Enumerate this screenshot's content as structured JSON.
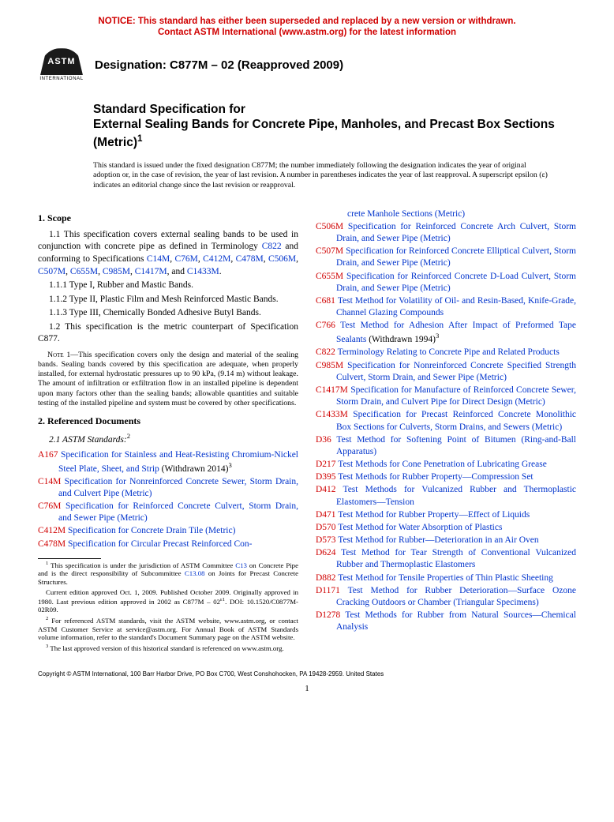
{
  "notice": {
    "line1": "NOTICE: This standard has either been superseded and replaced by a new version or withdrawn.",
    "line2": "Contact ASTM International (www.astm.org) for the latest information"
  },
  "logo": {
    "text": "ASTM",
    "sub": "INTERNATIONAL"
  },
  "designation": "Designation: C877M – 02 (Reapproved 2009)",
  "title": {
    "kicker": "Standard Specification for",
    "main": "External Sealing Bands for Concrete Pipe, Manholes, and Precast Box Sections (Metric)",
    "sup": "1"
  },
  "issuance": "This standard is issued under the fixed designation C877M; the number immediately following the designation indicates the year of original adoption or, in the case of revision, the year of last revision. A number in parentheses indicates the year of last reapproval. A superscript epsilon (ε) indicates an editorial change since the last revision or reapproval.",
  "sec1": {
    "heading": "1. Scope",
    "p11a": "1.1 This specification covers external sealing bands to be used in conjunction with concrete pipe as defined in Terminology ",
    "p11b": " and conforming to Specifications ",
    "list": [
      "C14M",
      "C76M",
      "C412M",
      "C478M",
      "C506M",
      "C507M",
      "C655M",
      "C985M",
      "C1417M",
      "C1433M"
    ],
    "termCode": "C822",
    "p111": "1.1.1 Type I, Rubber and Mastic Bands.",
    "p112": "1.1.2 Type II, Plastic Film and Mesh Reinforced Mastic Bands.",
    "p113": "1.1.3 Type III, Chemically Bonded Adhesive Butyl Bands.",
    "p12": "1.2 This specification is the metric counterpart of Specification C877.",
    "noteLabel": "Note 1",
    "note": "—This specification covers only the design and material of the sealing bands. Sealing bands covered by this specification are adequate, when properly installed, for external hydrostatic pressures up to 90 kPa, (9.14 m) without leakage. The amount of infiltration or exfiltration flow in an installed pipeline is dependent upon many factors other than the sealing bands; allowable quantities and suitable testing of the installed pipeline and system must be covered by other specifications."
  },
  "sec2": {
    "heading": "2. Referenced Documents",
    "subhead": "2.1 ASTM Standards:",
    "subheadSup": "2",
    "leftRefs": [
      {
        "code": "A167",
        "title": "Specification for Stainless and Heat-Resisting Chromium-Nickel Steel Plate, Sheet, and Strip",
        "suffix": " (Withdrawn 2014)",
        "sup": "3"
      },
      {
        "code": "C14M",
        "title": "Specification for Nonreinforced Concrete Sewer, Storm Drain, and Culvert Pipe (Metric)"
      },
      {
        "code": "C76M",
        "title": "Specification for Reinforced Concrete Culvert, Storm Drain, and Sewer Pipe (Metric)"
      },
      {
        "code": "C412M",
        "title": "Specification for Concrete Drain Tile (Metric)"
      },
      {
        "code": "C478M",
        "title": "Specification for Circular Precast Reinforced Con-"
      }
    ],
    "rightRefs": [
      {
        "contTitle": "crete Manhole Sections (Metric)"
      },
      {
        "code": "C506M",
        "title": "Specification for Reinforced Concrete Arch Culvert, Storm Drain, and Sewer Pipe (Metric)"
      },
      {
        "code": "C507M",
        "title": "Specification for Reinforced Concrete Elliptical Culvert, Storm Drain, and Sewer Pipe (Metric)"
      },
      {
        "code": "C655M",
        "title": "Specification for Reinforced Concrete D-Load Culvert, Storm Drain, and Sewer Pipe (Metric)"
      },
      {
        "code": "C681",
        "title": "Test Method for Volatility of Oil- and Resin-Based, Knife-Grade, Channel Glazing Compounds"
      },
      {
        "code": "C766",
        "title": "Test Method for Adhesion After Impact of Preformed Tape Sealants",
        "suffix": " (Withdrawn 1994)",
        "sup": "3"
      },
      {
        "code": "C822",
        "title": "Terminology Relating to Concrete Pipe and Related Products"
      },
      {
        "code": "C985M",
        "title": "Specification for Nonreinforced Concrete Specified Strength Culvert, Storm Drain, and Sewer Pipe (Metric)"
      },
      {
        "code": "C1417M",
        "title": "Specification for Manufacture of Reinforced Concrete Sewer, Storm Drain, and Culvert Pipe for Direct Design (Metric)"
      },
      {
        "code": "C1433M",
        "title": "Specification for Precast Reinforced Concrete Monolithic Box Sections for Culverts, Storm Drains, and Sewers (Metric)"
      },
      {
        "code": "D36",
        "title": "Test Method for Softening Point of Bitumen (Ring-and-Ball Apparatus)"
      },
      {
        "code": "D217",
        "title": "Test Methods for Cone Penetration of Lubricating Grease"
      },
      {
        "code": "D395",
        "title": "Test Methods for Rubber Property—Compression Set"
      },
      {
        "code": "D412",
        "title": "Test Methods for Vulcanized Rubber and Thermoplastic Elastomers—Tension"
      },
      {
        "code": "D471",
        "title": "Test Method for Rubber Property—Effect of Liquids"
      },
      {
        "code": "D570",
        "title": "Test Method for Water Absorption of Plastics"
      },
      {
        "code": "D573",
        "title": "Test Method for Rubber—Deterioration in an Air Oven"
      },
      {
        "code": "D624",
        "title": "Test Method for Tear Strength of Conventional Vulcanized Rubber and Thermoplastic Elastomers"
      },
      {
        "code": "D882",
        "title": "Test Method for Tensile Properties of Thin Plastic Sheeting"
      },
      {
        "code": "D1171",
        "title": "Test Method for Rubber Deterioration—Surface Ozone Cracking Outdoors or Chamber (Triangular Specimens)"
      },
      {
        "code": "D1278",
        "title": "Test Methods for Rubber from Natural Sources—Chemical Analysis"
      }
    ]
  },
  "footnotes": {
    "f1a": " This specification is under the jurisdiction of ASTM Committee ",
    "f1link": "C13",
    "f1b": " on Concrete Pipe and is the direct responsibility of Subcommittee ",
    "f1link2": "C13.08",
    "f1c": " on Joints for Precast Concrete Structures.",
    "f1d": "Current edition approved Oct. 1, 2009. Published October 2009. Originally approved in 1980. Last previous edition approved in 2002 as C877M – 02",
    "f1eps": "ε1",
    "f1e": ". DOI: 10.1520/C0877M-02R09.",
    "f2": " For referenced ASTM standards, visit the ASTM website, www.astm.org, or contact ASTM Customer Service at service@astm.org. For Annual Book of ASTM Standards volume information, refer to the standard's Document Summary page on the ASTM website.",
    "f3": " The last approved version of this historical standard is referenced on www.astm.org."
  },
  "copyright": "Copyright © ASTM International, 100 Barr Harbor Drive, PO Box C700, West Conshohocken, PA 19428-2959. United States",
  "pageNumber": "1"
}
